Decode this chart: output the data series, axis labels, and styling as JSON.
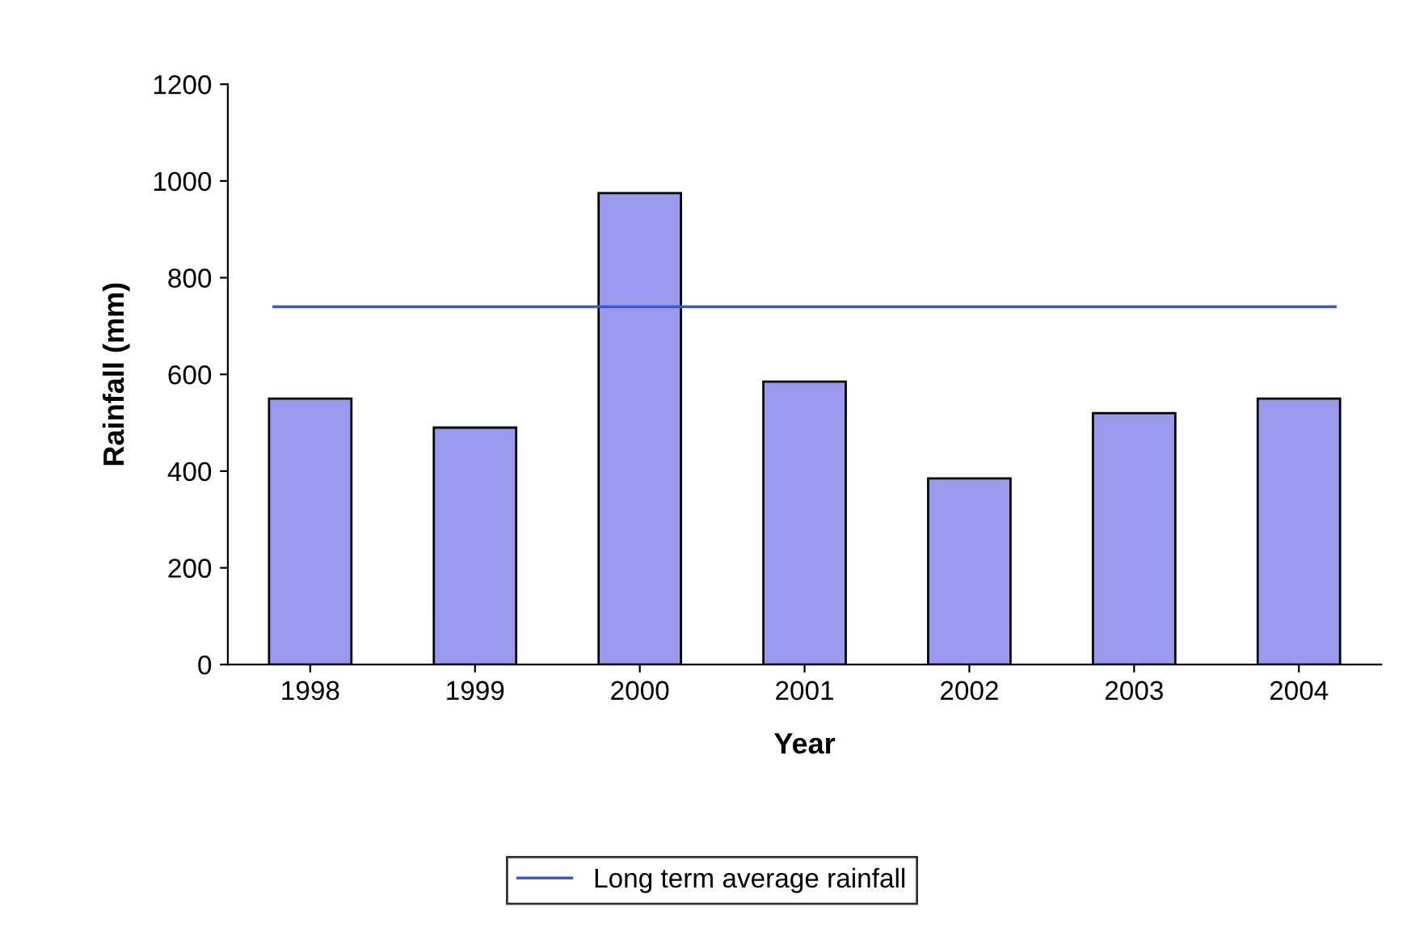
{
  "chart_data": {
    "type": "bar",
    "xlabel": "Year",
    "ylabel": "Rainfall (mm)",
    "categories": [
      "1998",
      "1999",
      "2000",
      "2001",
      "2002",
      "2003",
      "2004"
    ],
    "values": [
      550,
      490,
      975,
      585,
      385,
      520,
      550
    ],
    "color": "#9999ee",
    "ylim": [
      0,
      1200
    ],
    "yticks": [
      0,
      200,
      400,
      600,
      800,
      1000,
      1200
    ],
    "ref_lines": [
      {
        "axis": "y",
        "value": 740,
        "label": "Long term average rainfall",
        "color": "#3d57c4",
        "line_style": "solid"
      }
    ],
    "grid": false,
    "legend": "bottom"
  }
}
